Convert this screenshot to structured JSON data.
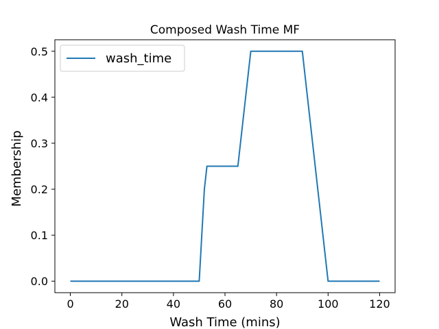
{
  "chart_data": {
    "type": "line",
    "title": "Composed Wash Time MF",
    "xlabel": "Wash Time (mins)",
    "ylabel": "Membership",
    "xlim": [
      -6,
      126
    ],
    "ylim": [
      -0.025,
      0.525
    ],
    "xticks": [
      0,
      20,
      40,
      60,
      80,
      100,
      120
    ],
    "xtick_labels": [
      "0",
      "20",
      "40",
      "60",
      "80",
      "100",
      "120"
    ],
    "yticks": [
      0.0,
      0.1,
      0.2,
      0.3,
      0.4,
      0.5
    ],
    "ytick_labels": [
      "0.0",
      "0.1",
      "0.2",
      "0.3",
      "0.4",
      "0.5"
    ],
    "grid": false,
    "legend_position": "top-left",
    "series": [
      {
        "name": "wash_time",
        "color": "#1f77b4",
        "x": [
          0,
          50,
          52,
          53,
          65,
          70,
          90,
          100,
          120
        ],
        "y": [
          0,
          0,
          0.2,
          0.25,
          0.25,
          0.5,
          0.5,
          0,
          0
        ]
      }
    ]
  }
}
